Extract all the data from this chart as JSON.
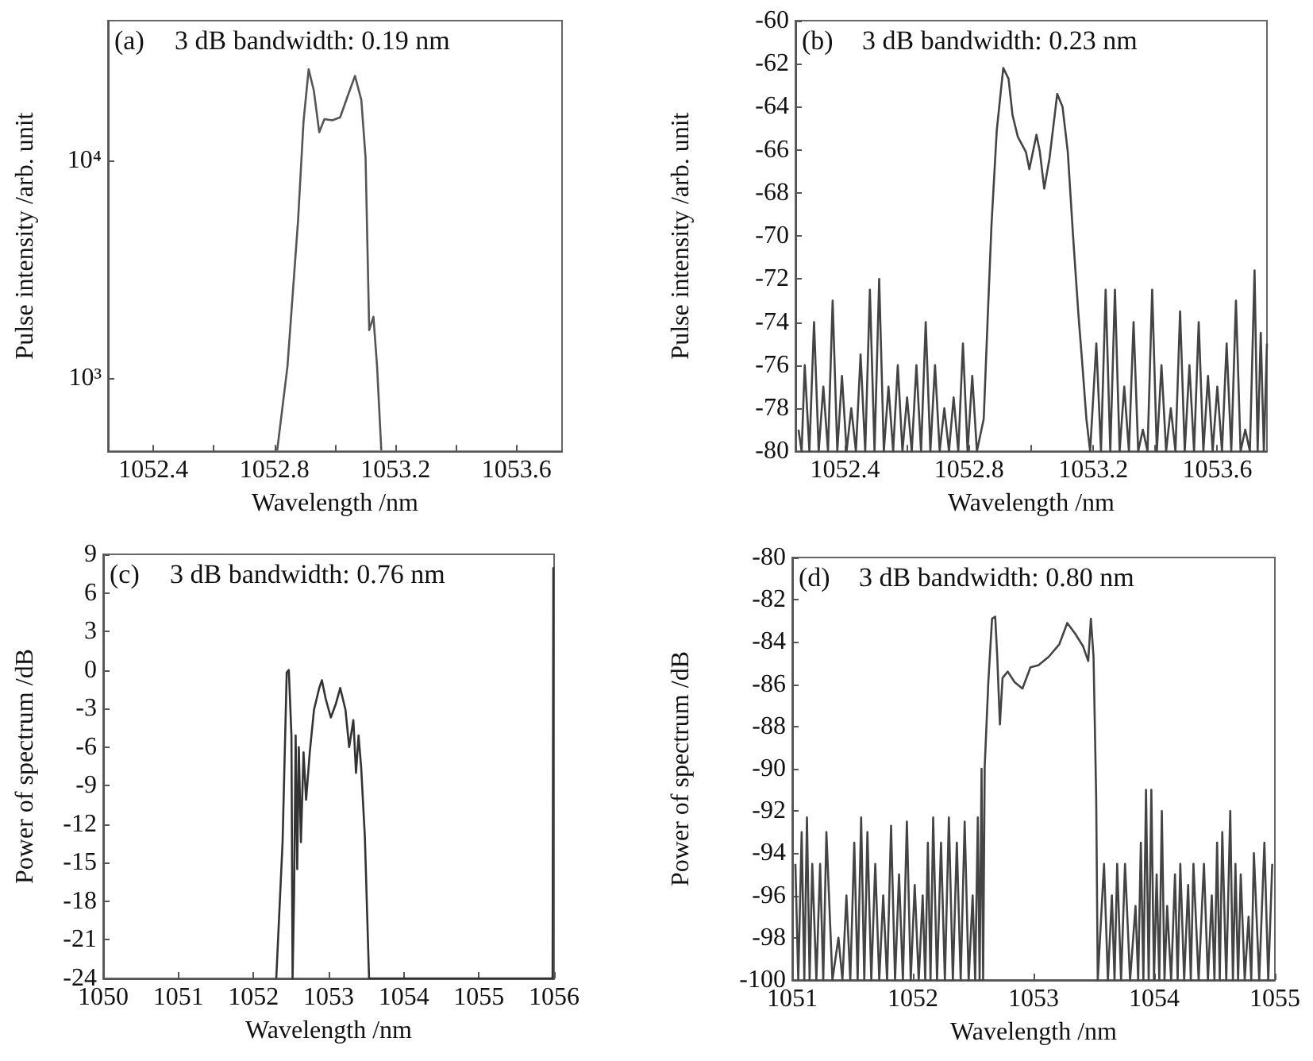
{
  "chart_data": [
    {
      "type": "line",
      "xlabel": "Wavelength /nm",
      "ylabel": "Pulse intensity /arb. unit",
      "annotations": [
        "(a)",
        "3 dB bandwidth: 0.19 nm"
      ],
      "log": "y",
      "xlim": [
        1052.25,
        1053.75
      ],
      "ylim": [
        460,
        44000
      ],
      "xticks": [
        1052.4,
        {
          "value": 1052.6,
          "label": null
        },
        1052.8,
        {
          "value": 1053.0,
          "label": null
        },
        1053.2,
        {
          "value": 1053.4,
          "label": null
        },
        1053.6
      ],
      "yticks": [
        {
          "value": 1000,
          "label": "10³"
        },
        {
          "value": 10000,
          "label": "10⁴"
        }
      ],
      "grid": false,
      "marker": "none",
      "line_style": "solid",
      "series": [
        {
          "color": "#555555",
          "x": [
            1052.809,
            1052.843,
            1052.878,
            1052.896,
            1052.913,
            1052.93,
            1052.948,
            1052.965,
            1052.991,
            1053.017,
            1053.043,
            1053.066,
            1053.087,
            1053.101,
            1053.113,
            1053.127,
            1053.139,
            1053.153
          ],
          "values": [
            464,
            1130,
            5300,
            15100,
            26300,
            21000,
            13500,
            15500,
            15300,
            15800,
            20000,
            24500,
            19000,
            10300,
            1660,
            1910,
            1130,
            464
          ]
        }
      ]
    },
    {
      "type": "line",
      "xlabel": "Wavelength /nm",
      "ylabel": "Pulse intensity /arb. unit",
      "annotations": [
        "(b)",
        "3 dB bandwidth: 0.23 nm"
      ],
      "xlim": [
        1052.24,
        1053.76
      ],
      "ylim": [
        -80,
        -60
      ],
      "xticks": [
        1052.4,
        {
          "value": 1052.6,
          "label": null
        },
        1052.8,
        {
          "value": 1053.0,
          "label": null
        },
        1053.2,
        {
          "value": 1053.4,
          "label": null
        },
        1053.6
      ],
      "yticks": [
        -80,
        -78,
        -76,
        -74,
        -72,
        -70,
        -68,
        -66,
        -64,
        -62,
        -60
      ],
      "grid": false,
      "marker": "none",
      "line_style": "solid",
      "series": [
        {
          "color": "#444444",
          "x": [
            1052.25,
            1052.26,
            1052.27,
            1052.285,
            1052.3,
            1052.315,
            1052.33,
            1052.345,
            1052.36,
            1052.375,
            1052.39,
            1052.405,
            1052.42,
            1052.435,
            1052.45,
            1052.465,
            1052.48,
            1052.495,
            1052.51,
            1052.525,
            1052.54,
            1052.555,
            1052.57,
            1052.585,
            1052.6,
            1052.615,
            1052.63,
            1052.645,
            1052.66,
            1052.675,
            1052.69,
            1052.705,
            1052.72,
            1052.735,
            1052.75,
            1052.765,
            1052.78,
            1052.795,
            1052.81,
            1052.825,
            1052.847,
            1052.859,
            1052.872,
            1052.889,
            1052.91,
            1052.927,
            1052.94,
            1052.957,
            1052.983,
            1052.994,
            1053.017,
            1053.028,
            1053.042,
            1053.059,
            1053.084,
            1053.101,
            1053.118,
            1053.135,
            1053.152,
            1053.164,
            1053.178,
            1053.19,
            1053.21,
            1053.225,
            1053.24,
            1053.255,
            1053.27,
            1053.285,
            1053.3,
            1053.315,
            1053.33,
            1053.345,
            1053.36,
            1053.375,
            1053.39,
            1053.405,
            1053.42,
            1053.435,
            1053.45,
            1053.465,
            1053.48,
            1053.495,
            1053.51,
            1053.525,
            1053.54,
            1053.555,
            1053.57,
            1053.585,
            1053.6,
            1053.615,
            1053.63,
            1053.645,
            1053.66,
            1053.675,
            1053.69,
            1053.705,
            1053.72,
            1053.73,
            1053.74,
            1053.75,
            1053.76
          ],
          "values": [
            -79,
            -80,
            -76,
            -80,
            -74,
            -80,
            -77,
            -80,
            -73,
            -80,
            -76.5,
            -80,
            -78,
            -80,
            -75.5,
            -80,
            -72.5,
            -80,
            -72,
            -80,
            -77,
            -80,
            -76,
            -80,
            -77.5,
            -80,
            -76,
            -80,
            -74,
            -80,
            -76,
            -80,
            -78,
            -80,
            -77.5,
            -80,
            -75,
            -80,
            -76.5,
            -80,
            -78.5,
            -74.1,
            -69.5,
            -65.1,
            -62.2,
            -62.7,
            -64.4,
            -65.4,
            -66.1,
            -66.9,
            -65.3,
            -66.1,
            -67.8,
            -66.4,
            -63.4,
            -64,
            -66.1,
            -70,
            -73.6,
            -75.8,
            -78.5,
            -80,
            -75,
            -80,
            -72.5,
            -80,
            -72.5,
            -80,
            -77,
            -80,
            -74,
            -80,
            -79,
            -80,
            -72.5,
            -80,
            -76,
            -80,
            -78,
            -80,
            -73.5,
            -80,
            -76,
            -80,
            -74,
            -80,
            -76.5,
            -80,
            -77,
            -80,
            -75,
            -80,
            -73,
            -80,
            -79,
            -80,
            -71.6,
            -80,
            -74.5,
            -80,
            -75
          ]
        }
      ]
    },
    {
      "type": "line",
      "xlabel": "Wavelength /nm",
      "ylabel": "Power of spectrum /dB",
      "annotations": [
        "(c)",
        "3 dB bandwidth: 0.76 nm"
      ],
      "xlim": [
        1050,
        1056
      ],
      "ylim": [
        -24,
        9
      ],
      "xticks": [
        1050,
        1051,
        1052,
        1053,
        1054,
        1055,
        1056
      ],
      "yticks": [
        -24,
        -21,
        -18,
        -15,
        -12,
        -9,
        -6,
        -3,
        0,
        3,
        6,
        9
      ],
      "grid": false,
      "marker": "none",
      "line_style": "solid",
      "series": [
        {
          "color": "#333333",
          "x": [
            1052.303,
            1052.387,
            1052.442,
            1052.47,
            1052.505,
            1052.52,
            1052.54,
            1052.561,
            1052.582,
            1052.603,
            1052.631,
            1052.666,
            1052.7,
            1052.749,
            1052.805,
            1052.875,
            1052.91,
            1052.959,
            1053.029,
            1053.098,
            1053.154,
            1053.224,
            1053.273,
            1053.329,
            1053.364,
            1053.398,
            1053.433,
            1053.482,
            1053.538,
            1055.98,
            1055.99
          ],
          "values": [
            -24,
            -13.4,
            -0.2,
            0,
            -5.1,
            -24,
            -17.5,
            -5.1,
            -15.5,
            -6,
            -13.4,
            -6.4,
            -10.1,
            -6.4,
            -3.1,
            -1.4,
            -0.8,
            -2.2,
            -3.7,
            -2.6,
            -1.4,
            -3.1,
            -6,
            -3.9,
            -8,
            -5.1,
            -7.6,
            -13,
            -24,
            -24,
            8
          ]
        }
      ]
    },
    {
      "type": "line",
      "xlabel": "Wavelength /nm",
      "ylabel": "Power of spectrum /dB",
      "annotations": [
        "(d)",
        "3 dB bandwidth: 0.80 nm"
      ],
      "xlim": [
        1051,
        1055
      ],
      "ylim": [
        -100,
        -80
      ],
      "xticks": [
        1051,
        1052,
        1053,
        1054,
        1055
      ],
      "yticks": [
        -100,
        -98,
        -96,
        -94,
        -92,
        -90,
        -88,
        -86,
        -84,
        -82,
        -80
      ],
      "grid": false,
      "marker": "none",
      "line_style": "solid",
      "series": [
        {
          "color": "#444444",
          "x": [
            1051.026,
            1051.05,
            1051.078,
            1051.1,
            1051.122,
            1051.144,
            1051.166,
            1051.2,
            1051.231,
            1051.257,
            1051.283,
            1051.333,
            1051.383,
            1051.416,
            1051.449,
            1051.481,
            1051.514,
            1051.542,
            1051.571,
            1051.597,
            1051.623,
            1051.655,
            1051.688,
            1051.721,
            1051.754,
            1051.786,
            1051.819,
            1051.852,
            1051.885,
            1051.917,
            1051.95,
            1051.982,
            1052.015,
            1052.048,
            1052.081,
            1052.102,
            1052.124,
            1052.146,
            1052.168,
            1052.2,
            1052.233,
            1052.265,
            1052.298,
            1052.331,
            1052.364,
            1052.396,
            1052.429,
            1052.462,
            1052.495,
            1052.516,
            1052.538,
            1052.553,
            1052.569,
            1052.582,
            1052.595,
            1052.625,
            1052.656,
            1052.682,
            1052.699,
            1052.721,
            1052.743,
            1052.786,
            1052.843,
            1052.908,
            1052.974,
            1053.039,
            1053.126,
            1053.214,
            1053.279,
            1053.344,
            1053.41,
            1053.453,
            1053.475,
            1053.497,
            1053.519,
            1053.532,
            1053.584,
            1053.616,
            1053.649,
            1053.671,
            1053.693,
            1053.725,
            1053.758,
            1053.8,
            1053.845,
            1053.867,
            1053.889,
            1053.91,
            1053.932,
            1053.954,
            1053.976,
            1053.998,
            1054.02,
            1054.042,
            1054.063,
            1054.085,
            1054.107,
            1054.14,
            1054.172,
            1054.194,
            1054.216,
            1054.248,
            1054.281,
            1054.303,
            1054.325,
            1054.368,
            1054.412,
            1054.445,
            1054.477,
            1054.499,
            1054.521,
            1054.543,
            1054.564,
            1054.597,
            1054.63,
            1054.652,
            1054.673,
            1054.695,
            1054.717,
            1054.75,
            1054.782,
            1054.804,
            1054.826,
            1054.87,
            1054.913,
            1054.945,
            1054.978
          ],
          "values": [
            -94.5,
            -100,
            -93,
            -100,
            -92.3,
            -100,
            -94.5,
            -100,
            -94.5,
            -100,
            -93,
            -100,
            -98,
            -100,
            -96,
            -100,
            -93.5,
            -100,
            -92.3,
            -100,
            -93,
            -100,
            -94.5,
            -100,
            -96,
            -100,
            -92.7,
            -100,
            -95,
            -100,
            -92.5,
            -100,
            -95.5,
            -100,
            -96,
            -100,
            -93.5,
            -100,
            -92.3,
            -100,
            -93.5,
            -100,
            -92.3,
            -100,
            -93.5,
            -100,
            -92.5,
            -100,
            -96,
            -100,
            -92.3,
            -100,
            -90,
            -100,
            -89.9,
            -85.9,
            -82.9,
            -82.8,
            -84.7,
            -87.9,
            -85.7,
            -85.4,
            -85.9,
            -86.2,
            -85.2,
            -85.1,
            -84.7,
            -84.1,
            -83.1,
            -83.6,
            -84.2,
            -84.9,
            -82.9,
            -84.7,
            -91.4,
            -100,
            -94.5,
            -100,
            -96,
            -100,
            -94.5,
            -100,
            -94.5,
            -100,
            -96.5,
            -100,
            -93.5,
            -100,
            -91,
            -100,
            -91,
            -100,
            -95,
            -100,
            -92,
            -100,
            -96.5,
            -100,
            -95,
            -100,
            -94.5,
            -100,
            -95.5,
            -100,
            -94.5,
            -100,
            -94.5,
            -100,
            -96,
            -100,
            -93.5,
            -100,
            -93,
            -100,
            -92,
            -100,
            -94.5,
            -100,
            -95,
            -100,
            -97,
            -100,
            -94,
            -100,
            -93.5,
            -100,
            -94.5
          ]
        }
      ]
    }
  ]
}
